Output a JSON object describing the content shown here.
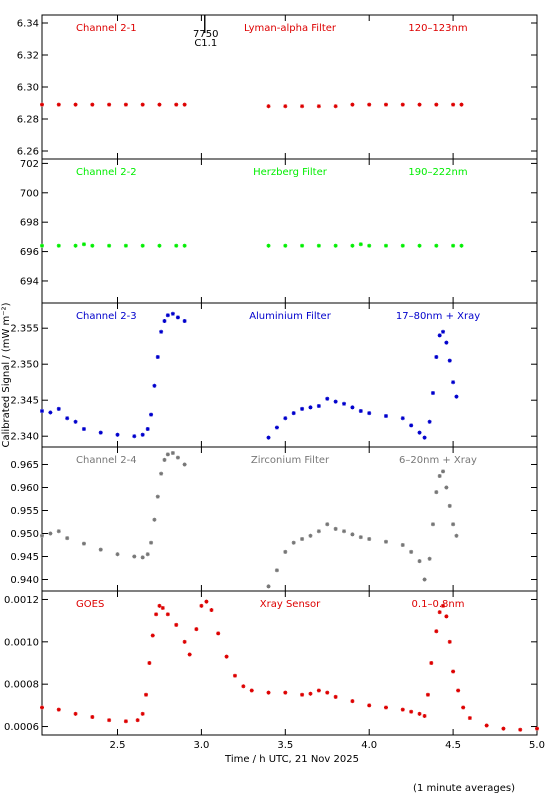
{
  "footer_note": "(1 minute averages)",
  "x_axis": {
    "label": "Time / h UTC, 21 Nov 2025",
    "range": [
      2.05,
      5.0
    ],
    "ticks": [
      "2.5",
      "3.0",
      "3.5",
      "4.0",
      "4.5",
      "5.0"
    ]
  },
  "y_axis_label": "Calibrated Signal / (mW m⁻²)",
  "colors": {
    "red": "#ff0000",
    "green": "#00ee00",
    "blue": "#0000cc",
    "grey": "#777777",
    "axes": "#000000"
  },
  "marker": {
    "top": "7750",
    "bottom": "C1.1",
    "x": 3.02
  },
  "chart_data": [
    {
      "type": "scatter",
      "name": "Channel 2-1",
      "filter": "Lyman-alpha Filter",
      "band": "120–123nm",
      "color": "#dd0000",
      "ylim": [
        6.255,
        6.345
      ],
      "yticks": [
        "6.26",
        "6.28",
        "6.30",
        "6.32",
        "6.34"
      ],
      "points": [
        [
          2.05,
          6.289
        ],
        [
          2.15,
          6.289
        ],
        [
          2.25,
          6.289
        ],
        [
          2.35,
          6.289
        ],
        [
          2.45,
          6.289
        ],
        [
          2.55,
          6.289
        ],
        [
          2.65,
          6.289
        ],
        [
          2.75,
          6.289
        ],
        [
          2.85,
          6.289
        ],
        [
          2.9,
          6.289
        ],
        [
          3.4,
          6.288
        ],
        [
          3.5,
          6.288
        ],
        [
          3.6,
          6.288
        ],
        [
          3.7,
          6.288
        ],
        [
          3.8,
          6.288
        ],
        [
          3.9,
          6.289
        ],
        [
          4.0,
          6.289
        ],
        [
          4.1,
          6.289
        ],
        [
          4.2,
          6.289
        ],
        [
          4.3,
          6.289
        ],
        [
          4.4,
          6.289
        ],
        [
          4.5,
          6.289
        ],
        [
          4.55,
          6.289
        ]
      ]
    },
    {
      "type": "scatter",
      "name": "Channel 2-2",
      "filter": "Herzberg Filter",
      "band": "190–222nm",
      "color": "#00ee00",
      "ylim": [
        692.5,
        702.3
      ],
      "yticks": [
        "694",
        "696",
        "698",
        "700",
        "702"
      ],
      "points": [
        [
          2.05,
          696.4
        ],
        [
          2.15,
          696.4
        ],
        [
          2.25,
          696.4
        ],
        [
          2.3,
          696.5
        ],
        [
          2.35,
          696.4
        ],
        [
          2.45,
          696.4
        ],
        [
          2.55,
          696.4
        ],
        [
          2.65,
          696.4
        ],
        [
          2.75,
          696.4
        ],
        [
          2.85,
          696.4
        ],
        [
          2.9,
          696.4
        ],
        [
          3.4,
          696.4
        ],
        [
          3.5,
          696.4
        ],
        [
          3.6,
          696.4
        ],
        [
          3.7,
          696.4
        ],
        [
          3.8,
          696.4
        ],
        [
          3.9,
          696.4
        ],
        [
          3.95,
          696.5
        ],
        [
          4.0,
          696.4
        ],
        [
          4.1,
          696.4
        ],
        [
          4.2,
          696.4
        ],
        [
          4.3,
          696.4
        ],
        [
          4.4,
          696.4
        ],
        [
          4.5,
          696.4
        ],
        [
          4.55,
          696.4
        ]
      ]
    },
    {
      "type": "scatter",
      "name": "Channel 2-3",
      "filter": "Aluminium Filter",
      "band": "17–80nm + Xray",
      "color": "#0000cc",
      "ylim": [
        2.3385,
        2.3585
      ],
      "yticks": [
        "2.340",
        "2.345",
        "2.350",
        "2.355"
      ],
      "points": [
        [
          2.05,
          2.3435
        ],
        [
          2.1,
          2.3433
        ],
        [
          2.15,
          2.3438
        ],
        [
          2.2,
          2.3425
        ],
        [
          2.25,
          2.342
        ],
        [
          2.3,
          2.341
        ],
        [
          2.4,
          2.3405
        ],
        [
          2.5,
          2.3402
        ],
        [
          2.6,
          2.34
        ],
        [
          2.65,
          2.3402
        ],
        [
          2.68,
          2.341
        ],
        [
          2.7,
          2.343
        ],
        [
          2.72,
          2.347
        ],
        [
          2.74,
          2.351
        ],
        [
          2.76,
          2.3545
        ],
        [
          2.78,
          2.356
        ],
        [
          2.8,
          2.3568
        ],
        [
          2.83,
          2.357
        ],
        [
          2.86,
          2.3565
        ],
        [
          2.9,
          2.356
        ],
        [
          3.4,
          2.3398
        ],
        [
          3.45,
          2.3412
        ],
        [
          3.5,
          2.3425
        ],
        [
          3.55,
          2.3432
        ],
        [
          3.6,
          2.3438
        ],
        [
          3.65,
          2.344
        ],
        [
          3.7,
          2.3442
        ],
        [
          3.75,
          2.3452
        ],
        [
          3.8,
          2.3448
        ],
        [
          3.85,
          2.3445
        ],
        [
          3.9,
          2.344
        ],
        [
          3.95,
          2.3435
        ],
        [
          4.0,
          2.3432
        ],
        [
          4.1,
          2.3428
        ],
        [
          4.2,
          2.3425
        ],
        [
          4.25,
          2.3415
        ],
        [
          4.3,
          2.3405
        ],
        [
          4.33,
          2.3398
        ],
        [
          4.36,
          2.342
        ],
        [
          4.38,
          2.346
        ],
        [
          4.4,
          2.351
        ],
        [
          4.42,
          2.354
        ],
        [
          4.44,
          2.3545
        ],
        [
          4.46,
          2.353
        ],
        [
          4.48,
          2.3505
        ],
        [
          4.5,
          2.3475
        ],
        [
          4.52,
          2.3455
        ]
      ]
    },
    {
      "type": "scatter",
      "name": "Channel 2-4",
      "filter": "Zirconium Filter",
      "band": "6–20nm + Xray",
      "color": "#777777",
      "ylim": [
        0.9375,
        0.9688
      ],
      "yticks": [
        "0.940",
        "0.945",
        "0.950",
        "0.955",
        "0.960",
        "0.965"
      ],
      "points": [
        [
          2.05,
          0.9495
        ],
        [
          2.1,
          0.95
        ],
        [
          2.15,
          0.9505
        ],
        [
          2.2,
          0.949
        ],
        [
          2.3,
          0.9478
        ],
        [
          2.4,
          0.9465
        ],
        [
          2.5,
          0.9455
        ],
        [
          2.6,
          0.945
        ],
        [
          2.65,
          0.9448
        ],
        [
          2.68,
          0.9455
        ],
        [
          2.7,
          0.948
        ],
        [
          2.72,
          0.953
        ],
        [
          2.74,
          0.958
        ],
        [
          2.76,
          0.963
        ],
        [
          2.78,
          0.966
        ],
        [
          2.8,
          0.9672
        ],
        [
          2.83,
          0.9675
        ],
        [
          2.86,
          0.9665
        ],
        [
          2.9,
          0.965
        ],
        [
          3.4,
          0.9385
        ],
        [
          3.45,
          0.942
        ],
        [
          3.5,
          0.946
        ],
        [
          3.55,
          0.948
        ],
        [
          3.6,
          0.9488
        ],
        [
          3.65,
          0.9495
        ],
        [
          3.7,
          0.9505
        ],
        [
          3.75,
          0.952
        ],
        [
          3.8,
          0.951
        ],
        [
          3.85,
          0.9505
        ],
        [
          3.9,
          0.9498
        ],
        [
          3.95,
          0.9492
        ],
        [
          4.0,
          0.9488
        ],
        [
          4.1,
          0.9482
        ],
        [
          4.2,
          0.9475
        ],
        [
          4.25,
          0.946
        ],
        [
          4.3,
          0.944
        ],
        [
          4.33,
          0.94
        ],
        [
          4.36,
          0.9445
        ],
        [
          4.38,
          0.952
        ],
        [
          4.4,
          0.959
        ],
        [
          4.42,
          0.9625
        ],
        [
          4.44,
          0.9635
        ],
        [
          4.46,
          0.96
        ],
        [
          4.48,
          0.956
        ],
        [
          4.5,
          0.952
        ],
        [
          4.52,
          0.9495
        ]
      ]
    },
    {
      "type": "scatter",
      "name": "GOES",
      "filter": "Xray Sensor",
      "band": "0.1–0.8nm",
      "color": "#dd0000",
      "ylim": [
        0.00056,
        0.00124
      ],
      "yticks": [
        "0.0006",
        "0.0008",
        "0.0010",
        "0.0012"
      ],
      "points": [
        [
          2.05,
          0.00069
        ],
        [
          2.15,
          0.00068
        ],
        [
          2.25,
          0.00066
        ],
        [
          2.35,
          0.000645
        ],
        [
          2.45,
          0.00063
        ],
        [
          2.55,
          0.000625
        ],
        [
          2.62,
          0.00063
        ],
        [
          2.65,
          0.00066
        ],
        [
          2.67,
          0.00075
        ],
        [
          2.69,
          0.0009
        ],
        [
          2.71,
          0.00103
        ],
        [
          2.73,
          0.00113
        ],
        [
          2.75,
          0.00117
        ],
        [
          2.77,
          0.00116
        ],
        [
          2.8,
          0.00113
        ],
        [
          2.85,
          0.00108
        ],
        [
          2.9,
          0.001
        ],
        [
          2.93,
          0.00094
        ],
        [
          2.97,
          0.00106
        ],
        [
          3.0,
          0.00117
        ],
        [
          3.03,
          0.00119
        ],
        [
          3.06,
          0.00115
        ],
        [
          3.1,
          0.00104
        ],
        [
          3.15,
          0.00093
        ],
        [
          3.2,
          0.00084
        ],
        [
          3.25,
          0.00079
        ],
        [
          3.3,
          0.00077
        ],
        [
          3.4,
          0.00076
        ],
        [
          3.5,
          0.00076
        ],
        [
          3.6,
          0.00075
        ],
        [
          3.65,
          0.000755
        ],
        [
          3.7,
          0.00077
        ],
        [
          3.75,
          0.00076
        ],
        [
          3.8,
          0.00074
        ],
        [
          3.9,
          0.00072
        ],
        [
          4.0,
          0.0007
        ],
        [
          4.1,
          0.00069
        ],
        [
          4.2,
          0.00068
        ],
        [
          4.25,
          0.00067
        ],
        [
          4.3,
          0.00066
        ],
        [
          4.33,
          0.00065
        ],
        [
          4.35,
          0.00075
        ],
        [
          4.37,
          0.0009
        ],
        [
          4.4,
          0.00105
        ],
        [
          4.42,
          0.00114
        ],
        [
          4.44,
          0.00117
        ],
        [
          4.46,
          0.00112
        ],
        [
          4.48,
          0.001
        ],
        [
          4.5,
          0.00086
        ],
        [
          4.53,
          0.00077
        ],
        [
          4.56,
          0.00069
        ],
        [
          4.6,
          0.00064
        ],
        [
          4.7,
          0.000605
        ],
        [
          4.8,
          0.00059
        ],
        [
          4.9,
          0.000585
        ],
        [
          5.0,
          0.00059
        ]
      ]
    }
  ]
}
